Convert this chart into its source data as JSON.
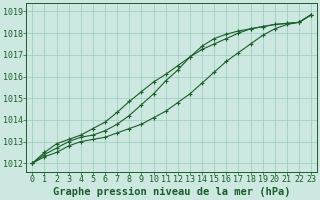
{
  "title": "Graphe pression niveau de la mer (hPa)",
  "bg_color": "#cce8e0",
  "grid_color": "#99ccbb",
  "line_color": "#1a5e2a",
  "xlim": [
    -0.5,
    23.5
  ],
  "ylim": [
    1011.6,
    1019.4
  ],
  "xticks": [
    0,
    1,
    2,
    3,
    4,
    5,
    6,
    7,
    8,
    9,
    10,
    11,
    12,
    13,
    14,
    15,
    16,
    17,
    18,
    19,
    20,
    21,
    22,
    23
  ],
  "yticks": [
    1012,
    1013,
    1014,
    1015,
    1016,
    1017,
    1018,
    1019
  ],
  "line1": [
    1012.0,
    1012.3,
    1012.5,
    1012.8,
    1013.0,
    1013.1,
    1013.2,
    1013.4,
    1013.6,
    1013.8,
    1014.1,
    1014.4,
    1014.8,
    1015.2,
    1015.7,
    1016.2,
    1016.7,
    1017.1,
    1017.5,
    1017.9,
    1018.2,
    1018.4,
    1018.5,
    1018.85
  ],
  "line2": [
    1012.0,
    1012.4,
    1012.7,
    1013.0,
    1013.2,
    1013.3,
    1013.5,
    1013.8,
    1014.2,
    1014.7,
    1015.2,
    1015.8,
    1016.3,
    1016.9,
    1017.4,
    1017.75,
    1017.95,
    1018.1,
    1018.2,
    1018.3,
    1018.4,
    1018.45,
    1018.5,
    1018.85
  ],
  "line3": [
    1012.0,
    1012.5,
    1012.9,
    1013.1,
    1013.3,
    1013.6,
    1013.9,
    1014.35,
    1014.85,
    1015.3,
    1015.75,
    1016.1,
    1016.5,
    1016.9,
    1017.25,
    1017.5,
    1017.75,
    1018.0,
    1018.2,
    1018.3,
    1018.4,
    1018.45,
    1018.5,
    1018.85
  ],
  "title_fontsize": 7.5,
  "tick_fontsize": 6,
  "title_color": "#1a5e2a",
  "tick_color": "#1a5e2a",
  "spine_color": "#1a5e2a"
}
